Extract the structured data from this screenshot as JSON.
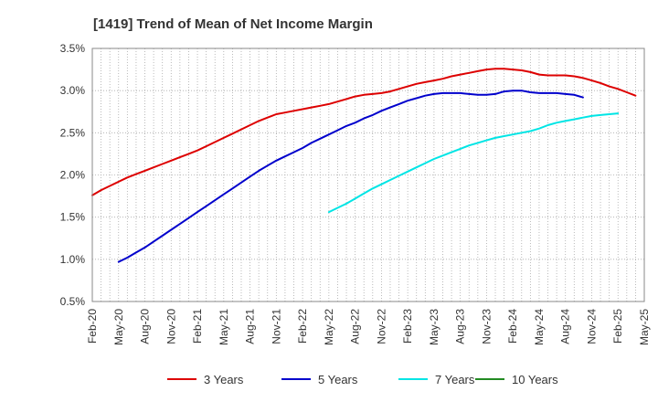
{
  "chart_data": {
    "type": "line",
    "title": "[1419]  Trend of Mean of Net Income Margin",
    "xlabel": "",
    "ylabel": "",
    "ylim": [
      0.5,
      3.5
    ],
    "y_ticks": [
      "0.5%",
      "1.0%",
      "1.5%",
      "2.0%",
      "2.5%",
      "3.0%",
      "3.5%"
    ],
    "y_tick_values": [
      0.5,
      1.0,
      1.5,
      2.0,
      2.5,
      3.0,
      3.5
    ],
    "x_ticks": [
      "Feb-20",
      "May-20",
      "Aug-20",
      "Nov-20",
      "Feb-21",
      "May-21",
      "Aug-21",
      "Nov-21",
      "Feb-22",
      "May-22",
      "Aug-22",
      "Nov-22",
      "Feb-23",
      "May-23",
      "Aug-23",
      "Nov-23",
      "Feb-24",
      "May-24",
      "Aug-24",
      "Nov-24",
      "Feb-25",
      "May-25"
    ],
    "x_range_months": [
      "2020-02",
      "2025-05"
    ],
    "grid": true,
    "legend_position": "bottom",
    "series": [
      {
        "name": "3 Years",
        "color": "#dd0000",
        "start": "2020-02",
        "values": [
          1.76,
          1.82,
          1.87,
          1.92,
          1.97,
          2.01,
          2.05,
          2.09,
          2.13,
          2.17,
          2.21,
          2.25,
          2.29,
          2.34,
          2.39,
          2.44,
          2.49,
          2.54,
          2.59,
          2.64,
          2.68,
          2.72,
          2.74,
          2.76,
          2.78,
          2.8,
          2.82,
          2.84,
          2.87,
          2.9,
          2.93,
          2.95,
          2.96,
          2.97,
          2.99,
          3.02,
          3.05,
          3.08,
          3.1,
          3.12,
          3.14,
          3.17,
          3.19,
          3.21,
          3.23,
          3.25,
          3.26,
          3.26,
          3.25,
          3.24,
          3.22,
          3.19,
          3.18,
          3.18,
          3.18,
          3.17,
          3.15,
          3.12,
          3.09,
          3.05,
          3.02,
          2.98,
          2.94
        ]
      },
      {
        "name": "5 Years",
        "color": "#0000cc",
        "start": "2020-05",
        "values": [
          0.97,
          1.02,
          1.08,
          1.14,
          1.21,
          1.28,
          1.35,
          1.42,
          1.49,
          1.56,
          1.63,
          1.7,
          1.77,
          1.84,
          1.91,
          1.98,
          2.05,
          2.11,
          2.17,
          2.22,
          2.27,
          2.32,
          2.38,
          2.43,
          2.48,
          2.53,
          2.58,
          2.62,
          2.67,
          2.71,
          2.76,
          2.8,
          2.84,
          2.88,
          2.91,
          2.94,
          2.96,
          2.97,
          2.97,
          2.97,
          2.96,
          2.95,
          2.95,
          2.96,
          2.99,
          3.0,
          3.0,
          2.98,
          2.97,
          2.97,
          2.97,
          2.96,
          2.95,
          2.92
        ]
      },
      {
        "name": "7 Years",
        "color": "#00e5e5",
        "start": "2022-05",
        "values": [
          1.56,
          1.61,
          1.66,
          1.72,
          1.78,
          1.84,
          1.89,
          1.94,
          1.99,
          2.04,
          2.09,
          2.14,
          2.19,
          2.23,
          2.27,
          2.31,
          2.35,
          2.38,
          2.41,
          2.44,
          2.46,
          2.48,
          2.5,
          2.52,
          2.55,
          2.59,
          2.62,
          2.64,
          2.66,
          2.68,
          2.7,
          2.71,
          2.72,
          2.73
        ]
      },
      {
        "name": "10 Years",
        "color": "#228b22",
        "start": "2025-02",
        "values": []
      }
    ]
  }
}
